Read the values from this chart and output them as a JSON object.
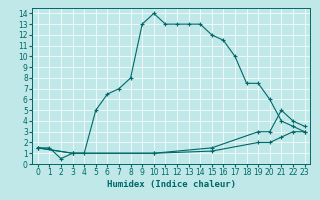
{
  "title": "",
  "xlabel": "Humidex (Indice chaleur)",
  "bg_color": "#c0e8e8",
  "line_color": "#006868",
  "xlim": [
    -0.5,
    23.5
  ],
  "ylim": [
    0,
    14.5
  ],
  "xticks": [
    0,
    1,
    2,
    3,
    4,
    5,
    6,
    7,
    8,
    9,
    10,
    11,
    12,
    13,
    14,
    15,
    16,
    17,
    18,
    19,
    20,
    21,
    22,
    23
  ],
  "yticks": [
    0,
    1,
    2,
    3,
    4,
    5,
    6,
    7,
    8,
    9,
    10,
    11,
    12,
    13,
    14
  ],
  "line1_x": [
    0,
    1,
    2,
    3,
    4,
    5,
    6,
    7,
    8,
    9,
    10,
    11,
    12,
    13,
    14,
    15,
    16,
    17,
    18,
    19,
    20,
    21,
    22,
    23
  ],
  "line1_y": [
    1.5,
    1.5,
    0.5,
    1,
    1,
    5,
    6.5,
    7,
    8,
    13,
    14,
    13,
    13,
    13,
    13,
    12,
    11.5,
    10,
    7.5,
    7.5,
    6,
    4,
    3.5,
    3
  ],
  "line2_x": [
    0,
    3,
    10,
    15,
    19,
    20,
    21,
    22,
    23
  ],
  "line2_y": [
    1.5,
    1,
    1,
    1.5,
    3,
    3,
    5,
    4,
    3.5
  ],
  "line3_x": [
    0,
    3,
    10,
    15,
    19,
    20,
    21,
    22,
    23
  ],
  "line3_y": [
    1.5,
    1,
    1,
    1.2,
    2,
    2,
    2.5,
    3,
    3
  ]
}
